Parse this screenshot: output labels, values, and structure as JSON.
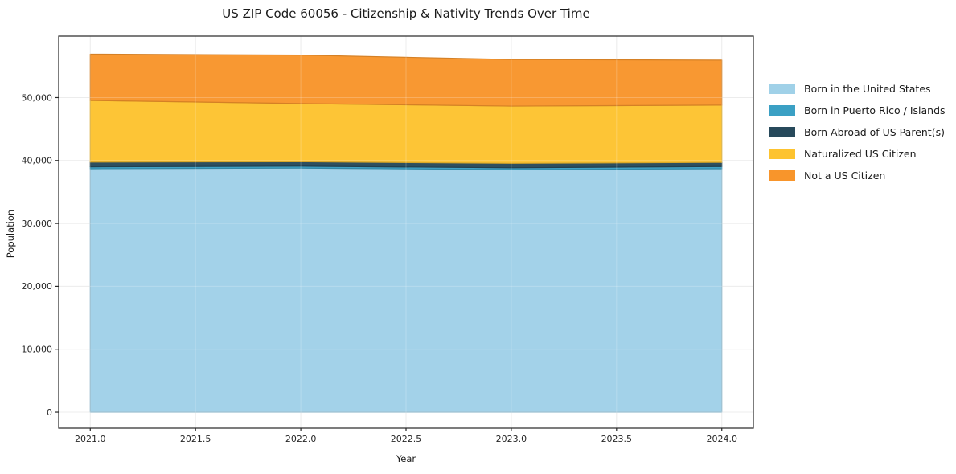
{
  "figure": {
    "background": "#ffffff",
    "spine_color": "#262626",
    "grid_color": "#e7e7e7",
    "tick_label_color": "#262626",
    "text_color": "#1a1a1a"
  },
  "chart_data": {
    "type": "area",
    "stacked": true,
    "title": "US ZIP Code 60056 - Citizenship & Nativity Trends Over Time",
    "xlabel": "Year",
    "ylabel": "Population",
    "x": [
      2021,
      2022,
      2023,
      2024
    ],
    "series": [
      {
        "name": "Born in the United States",
        "color": "#a0d1e8",
        "values": [
          38700,
          38800,
          38550,
          38700
        ]
      },
      {
        "name": "Born in Puerto Rico / Islands",
        "color": "#3ba0c4",
        "values": [
          300,
          300,
          300,
          350
        ]
      },
      {
        "name": "Born Abroad of US Parent(s)",
        "color": "#27495b",
        "values": [
          750,
          700,
          700,
          650
        ]
      },
      {
        "name": "Naturalized US Citizen",
        "color": "#fdc32f",
        "values": [
          9800,
          9250,
          9100,
          9100
        ]
      },
      {
        "name": "Not a US Citizen",
        "color": "#f8952b",
        "values": [
          7350,
          7700,
          7400,
          7150
        ]
      }
    ],
    "stacked_totals": [
      56900,
      56750,
      56050,
      55950
    ],
    "xticks": [
      2021.0,
      2021.5,
      2022.0,
      2022.5,
      2023.0,
      2023.5,
      2024.0
    ],
    "xtick_labels": [
      "2021.0",
      "2021.5",
      "2022.0",
      "2022.5",
      "2023.0",
      "2023.5",
      "2024.0"
    ],
    "yticks": [
      0,
      10000,
      20000,
      30000,
      40000,
      50000
    ],
    "ytick_labels": [
      "0",
      "10,000",
      "20,000",
      "30,000",
      "40,000",
      "50,000"
    ],
    "xlim": [
      2020.85,
      2024.15
    ],
    "ylim": [
      -2550,
      59765
    ],
    "grid": true,
    "legend_position": "right-outside"
  }
}
